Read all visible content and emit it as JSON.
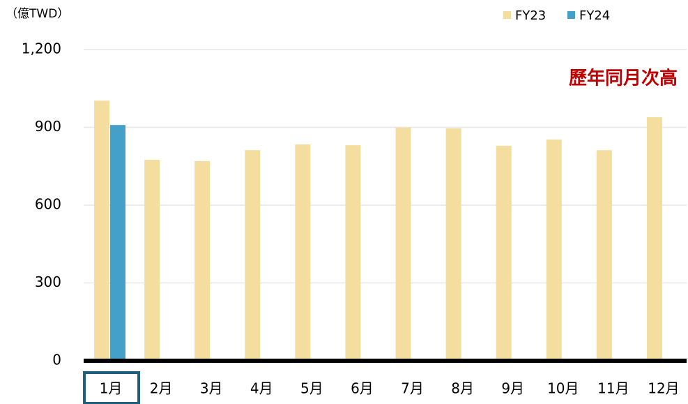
{
  "chart_data": {
    "type": "bar",
    "unit_label": "（億TWD）",
    "annotation": "歷年同月次高",
    "categories": [
      "1月",
      "2月",
      "3月",
      "4月",
      "5月",
      "6月",
      "7月",
      "8月",
      "9月",
      "10月",
      "11月",
      "12月"
    ],
    "series": [
      {
        "name": "FY23",
        "color": "#f3dea0",
        "values": [
          1003,
          775,
          770,
          812,
          834,
          831,
          899,
          896,
          829,
          853,
          812,
          939
        ]
      },
      {
        "name": "FY24",
        "color": "#44a0c8",
        "values": [
          909,
          null,
          null,
          null,
          null,
          null,
          null,
          null,
          null,
          null,
          null,
          null
        ]
      }
    ],
    "ylim": [
      0,
      1200
    ],
    "yticks": [
      0,
      300,
      600,
      900,
      {
        "value": 1200,
        "label": "1,200"
      }
    ],
    "grid": true,
    "legend": "top-right",
    "highlight_category": 0
  }
}
